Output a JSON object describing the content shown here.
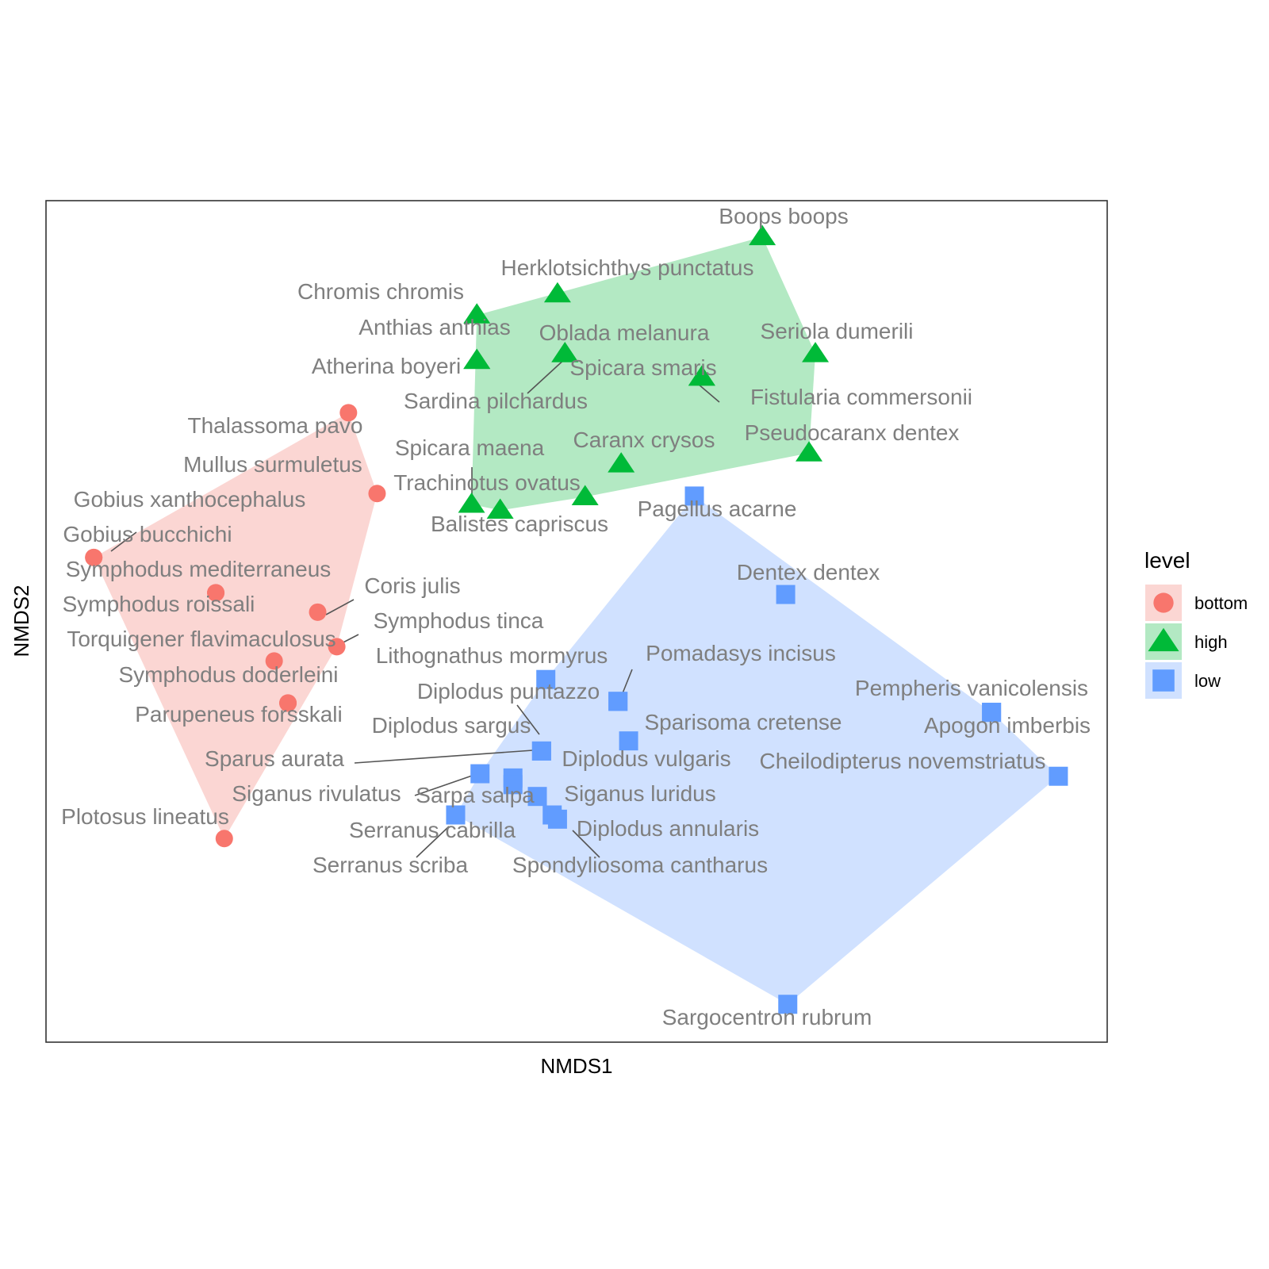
{
  "chart_data": {
    "type": "scatter",
    "xlabel": "NMDS1",
    "ylabel": "NMDS2",
    "xlim": [
      0,
      1
    ],
    "ylim": [
      0,
      1
    ],
    "grid": false,
    "legend": {
      "title": "level",
      "position": "right",
      "entries": [
        {
          "key": "bottom",
          "label": "bottom",
          "color": "#F8766D",
          "fill": "#FBD6D3",
          "shape": "circle"
        },
        {
          "key": "high",
          "label": "high",
          "color": "#00BA38",
          "fill": "#B3E9C3",
          "shape": "triangle"
        },
        {
          "key": "low",
          "label": "low",
          "color": "#619CFF",
          "fill": "#D0E1FF",
          "shape": "square"
        }
      ]
    },
    "points": [
      {
        "name": "Thalassoma pavo",
        "group": "bottom",
        "x": 0.285,
        "y": 0.748
      },
      {
        "name": "Mullus surmuletus",
        "group": "bottom",
        "x": 0.312,
        "y": 0.652
      },
      {
        "name": "Gobius bucchichi",
        "group": "bottom",
        "x": 0.045,
        "y": 0.576
      },
      {
        "name": "Symphodus mediterraneus",
        "group": "bottom",
        "x": 0.16,
        "y": 0.534
      },
      {
        "name": "Coris julis",
        "group": "bottom",
        "x": 0.256,
        "y": 0.511
      },
      {
        "name": "Symphodus tinca",
        "group": "bottom",
        "x": 0.274,
        "y": 0.47
      },
      {
        "name": "Torquigener flavimaculosus",
        "group": "bottom",
        "x": 0.215,
        "y": 0.453
      },
      {
        "name": "Parupeneus forsskali",
        "group": "bottom",
        "x": 0.228,
        "y": 0.403
      },
      {
        "name": "Plotosus lineatus",
        "group": "bottom",
        "x": 0.168,
        "y": 0.242
      },
      {
        "name": "Gobius xanthocephalus",
        "group": "bottom",
        "x": 0.045,
        "y": 0.576
      },
      {
        "name": "Symphodus roissali",
        "group": "bottom",
        "x": 0.16,
        "y": 0.534
      },
      {
        "name": "Symphodus doderleini",
        "group": "bottom",
        "x": 0.228,
        "y": 0.403
      },
      {
        "name": "Boops boops",
        "group": "high",
        "x": 0.675,
        "y": 0.957
      },
      {
        "name": "Herklotsichthys punctatus",
        "group": "high",
        "x": 0.482,
        "y": 0.889
      },
      {
        "name": "Chromis chromis",
        "group": "high",
        "x": 0.406,
        "y": 0.864
      },
      {
        "name": "Anthias anthias",
        "group": "high",
        "x": 0.406,
        "y": 0.81
      },
      {
        "name": "Oblada melanura",
        "group": "high",
        "x": 0.489,
        "y": 0.818
      },
      {
        "name": "Seriola dumerili",
        "group": "high",
        "x": 0.725,
        "y": 0.818
      },
      {
        "name": "Spicara smaris",
        "group": "high",
        "x": 0.618,
        "y": 0.79
      },
      {
        "name": "Sardina pilchardus",
        "group": "high",
        "x": 0.489,
        "y": 0.818
      },
      {
        "name": "Fistularia commersonii",
        "group": "high",
        "x": 0.618,
        "y": 0.79
      },
      {
        "name": "Atherina boyeri",
        "group": "high",
        "x": 0.406,
        "y": 0.81
      },
      {
        "name": "Pseudocaranx dentex",
        "group": "high",
        "x": 0.719,
        "y": 0.7
      },
      {
        "name": "Caranx crysos",
        "group": "high",
        "x": 0.542,
        "y": 0.687
      },
      {
        "name": "Spicara maena",
        "group": "high",
        "x": 0.401,
        "y": 0.639
      },
      {
        "name": "Trachinotus ovatus",
        "group": "high",
        "x": 0.508,
        "y": 0.648
      },
      {
        "name": "Balistes capriscus",
        "group": "high",
        "x": 0.428,
        "y": 0.632
      },
      {
        "name": "Pagellus acarne",
        "group": "low",
        "x": 0.611,
        "y": 0.649
      },
      {
        "name": "Dentex dentex",
        "group": "low",
        "x": 0.697,
        "y": 0.532
      },
      {
        "name": "Lithognathus mormyrus",
        "group": "low",
        "x": 0.471,
        "y": 0.431
      },
      {
        "name": "Pomadasys incisus",
        "group": "low",
        "x": 0.539,
        "y": 0.405
      },
      {
        "name": "Diplodus puntazzo",
        "group": "low",
        "x": 0.539,
        "y": 0.405
      },
      {
        "name": "Pempheris vanicolensis",
        "group": "low",
        "x": 0.891,
        "y": 0.392
      },
      {
        "name": "Sparisoma cretense",
        "group": "low",
        "x": 0.549,
        "y": 0.358
      },
      {
        "name": "Diplodus sargus",
        "group": "low",
        "x": 0.467,
        "y": 0.346
      },
      {
        "name": "Apogon imberbis",
        "group": "low",
        "x": 0.891,
        "y": 0.392
      },
      {
        "name": "Cheilodipterus novemstriatus",
        "group": "low",
        "x": 0.954,
        "y": 0.316
      },
      {
        "name": "Sparus aurata",
        "group": "low",
        "x": 0.467,
        "y": 0.346
      },
      {
        "name": "Diplodus vulgaris",
        "group": "low",
        "x": 0.44,
        "y": 0.314
      },
      {
        "name": "Siganus rivulatus",
        "group": "low",
        "x": 0.409,
        "y": 0.319
      },
      {
        "name": "Sarpa salpa",
        "group": "low",
        "x": 0.44,
        "y": 0.306
      },
      {
        "name": "Siganus luridus",
        "group": "low",
        "x": 0.463,
        "y": 0.292
      },
      {
        "name": "Serranus cabrilla",
        "group": "low",
        "x": 0.386,
        "y": 0.27
      },
      {
        "name": "Diplodus annularis",
        "group": "low",
        "x": 0.477,
        "y": 0.27
      },
      {
        "name": "Serranus scriba",
        "group": "low",
        "x": 0.386,
        "y": 0.27
      },
      {
        "name": "Spondyliosoma cantharus",
        "group": "low",
        "x": 0.482,
        "y": 0.265
      },
      {
        "name": "Sargocentron rubrum",
        "group": "low",
        "x": 0.699,
        "y": 0.045
      }
    ]
  }
}
